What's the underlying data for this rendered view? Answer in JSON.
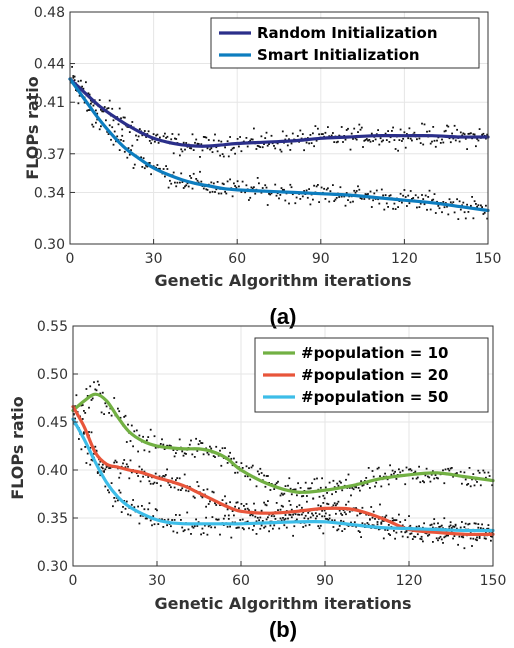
{
  "chart_data": [
    {
      "type": "line",
      "panel_label": "(a)",
      "xlabel": "Genetic Algorithm iterations",
      "ylabel": "FLOPs ratio",
      "xlim": [
        0,
        150
      ],
      "ylim": [
        0.3,
        0.48
      ],
      "xticks": [
        0,
        30,
        60,
        90,
        120,
        150
      ],
      "yticks": [
        0.3,
        0.34,
        0.37,
        0.41,
        0.44,
        0.48
      ],
      "ytick_labels": [
        "0.30",
        "0.34",
        "0.37",
        "0.41",
        "0.44",
        "0.48"
      ],
      "grid": true,
      "legend_position": "top-right",
      "series": [
        {
          "name": "Random Initialization",
          "color": "#2b2f8a",
          "x": [
            0,
            5,
            10,
            15,
            20,
            25,
            30,
            35,
            40,
            45,
            50,
            55,
            60,
            70,
            80,
            90,
            100,
            110,
            120,
            130,
            140,
            150
          ],
          "y": [
            0.428,
            0.418,
            0.408,
            0.4,
            0.393,
            0.387,
            0.382,
            0.379,
            0.377,
            0.376,
            0.376,
            0.377,
            0.378,
            0.379,
            0.38,
            0.382,
            0.383,
            0.384,
            0.384,
            0.384,
            0.383,
            0.383
          ]
        },
        {
          "name": "Smart Initialization",
          "color": "#0d7dbf",
          "x": [
            0,
            5,
            10,
            15,
            20,
            25,
            30,
            35,
            40,
            45,
            50,
            55,
            60,
            70,
            80,
            90,
            100,
            110,
            120,
            130,
            140,
            150
          ],
          "y": [
            0.428,
            0.413,
            0.398,
            0.385,
            0.374,
            0.366,
            0.359,
            0.354,
            0.35,
            0.347,
            0.345,
            0.343,
            0.342,
            0.341,
            0.34,
            0.339,
            0.338,
            0.336,
            0.334,
            0.332,
            0.329,
            0.326
          ]
        }
      ]
    },
    {
      "type": "line",
      "panel_label": "(b)",
      "xlabel": "Genetic Algorithm iterations",
      "ylabel": "FLOPs ratio",
      "xlim": [
        0,
        150
      ],
      "ylim": [
        0.3,
        0.55
      ],
      "xticks": [
        0,
        30,
        60,
        90,
        120,
        150
      ],
      "yticks": [
        0.3,
        0.35,
        0.4,
        0.45,
        0.5,
        0.55
      ],
      "ytick_labels": [
        "0.30",
        "0.35",
        "0.40",
        "0.45",
        "0.50",
        "0.55"
      ],
      "grid": true,
      "legend_position": "top-right",
      "series": [
        {
          "name": "#population = 10",
          "color": "#72b043",
          "x": [
            0,
            4,
            8,
            12,
            16,
            20,
            25,
            30,
            35,
            40,
            45,
            50,
            55,
            60,
            70,
            80,
            90,
            100,
            110,
            120,
            130,
            140,
            150
          ],
          "y": [
            0.462,
            0.472,
            0.479,
            0.472,
            0.455,
            0.44,
            0.43,
            0.425,
            0.423,
            0.422,
            0.422,
            0.419,
            0.412,
            0.4,
            0.385,
            0.377,
            0.379,
            0.384,
            0.391,
            0.395,
            0.397,
            0.393,
            0.389
          ]
        },
        {
          "name": "#population = 20",
          "color": "#e8553a",
          "x": [
            0,
            4,
            8,
            12,
            16,
            20,
            25,
            30,
            35,
            40,
            45,
            50,
            55,
            60,
            70,
            80,
            90,
            100,
            110,
            120,
            130,
            140,
            150
          ],
          "y": [
            0.466,
            0.445,
            0.418,
            0.406,
            0.403,
            0.4,
            0.397,
            0.392,
            0.388,
            0.383,
            0.376,
            0.369,
            0.362,
            0.357,
            0.355,
            0.357,
            0.36,
            0.359,
            0.35,
            0.338,
            0.335,
            0.333,
            0.333
          ]
        },
        {
          "name": "#population = 50",
          "color": "#3dbde8",
          "x": [
            0,
            4,
            8,
            12,
            16,
            20,
            25,
            30,
            35,
            40,
            45,
            50,
            55,
            60,
            70,
            80,
            90,
            100,
            110,
            120,
            130,
            140,
            150
          ],
          "y": [
            0.453,
            0.432,
            0.408,
            0.387,
            0.372,
            0.362,
            0.354,
            0.348,
            0.345,
            0.344,
            0.344,
            0.344,
            0.344,
            0.344,
            0.345,
            0.346,
            0.346,
            0.343,
            0.34,
            0.339,
            0.338,
            0.337,
            0.337
          ]
        }
      ]
    }
  ]
}
